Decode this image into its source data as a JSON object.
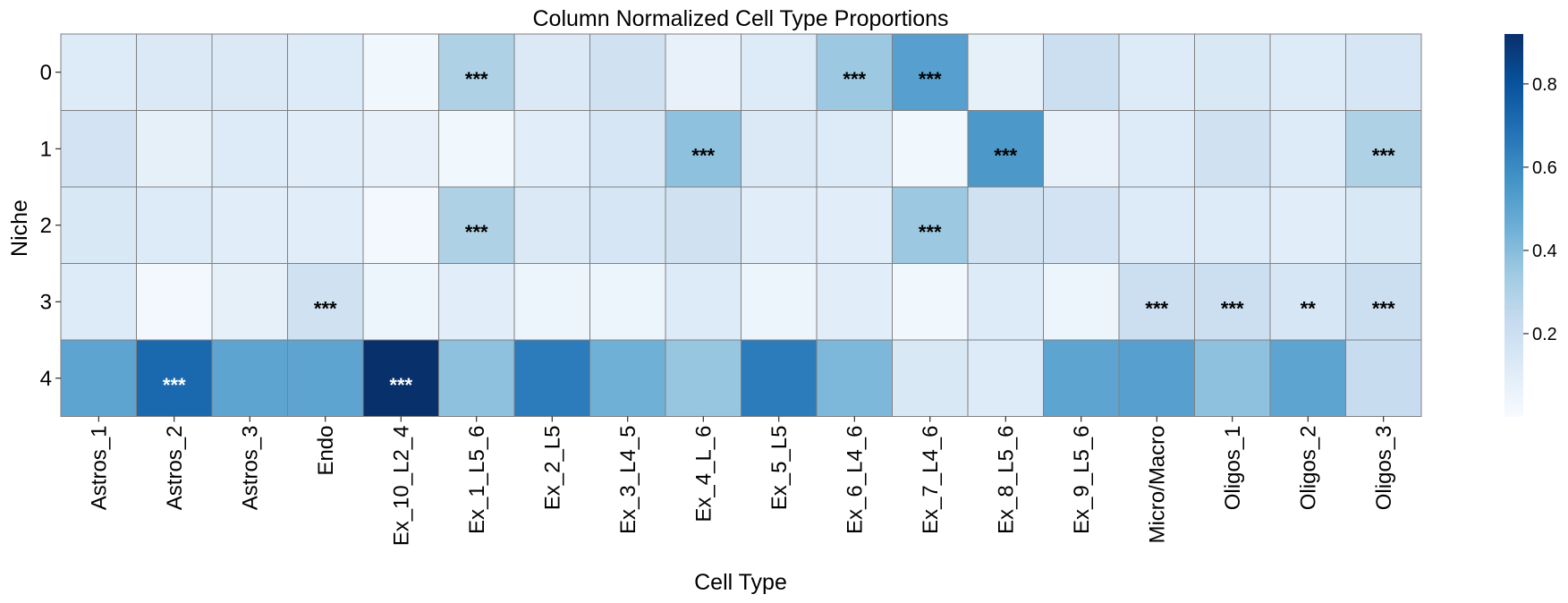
{
  "chart_data": {
    "type": "heatmap",
    "title": "Column Normalized Cell Type Proportions",
    "xlabel": "Cell Type",
    "ylabel": "Niche",
    "columns": [
      "Astros_1",
      "Astros_2",
      "Astros_3",
      "Endo",
      "Ex_10_L2_4",
      "Ex_1_L5_6",
      "Ex_2_L5",
      "Ex_3_L4_5",
      "Ex_4_L_6",
      "Ex_5_L5",
      "Ex_6_L4_6",
      "Ex_7_L4_6",
      "Ex_8_L5_6",
      "Ex_9_L5_6",
      "Micro/Macro",
      "Oligos_1",
      "Oligos_2",
      "Oligos_3"
    ],
    "rows": [
      "0",
      "1",
      "2",
      "3",
      "4"
    ],
    "values": [
      [
        0.12,
        0.13,
        0.13,
        0.12,
        0.03,
        0.3,
        0.13,
        0.18,
        0.07,
        0.12,
        0.35,
        0.52,
        0.08,
        0.2,
        0.12,
        0.14,
        0.12,
        0.15
      ],
      [
        0.17,
        0.08,
        0.12,
        0.1,
        0.07,
        0.03,
        0.1,
        0.15,
        0.38,
        0.13,
        0.12,
        0.03,
        0.55,
        0.07,
        0.12,
        0.18,
        0.12,
        0.3
      ],
      [
        0.14,
        0.12,
        0.1,
        0.1,
        0.02,
        0.3,
        0.13,
        0.15,
        0.18,
        0.1,
        0.1,
        0.35,
        0.18,
        0.17,
        0.12,
        0.12,
        0.1,
        0.14
      ],
      [
        0.12,
        0.02,
        0.08,
        0.18,
        0.05,
        0.1,
        0.05,
        0.05,
        0.12,
        0.05,
        0.1,
        0.03,
        0.12,
        0.05,
        0.2,
        0.2,
        0.15,
        0.2
      ],
      [
        0.5,
        0.72,
        0.5,
        0.5,
        0.92,
        0.38,
        0.65,
        0.45,
        0.36,
        0.65,
        0.42,
        0.14,
        0.12,
        0.5,
        0.52,
        0.38,
        0.5,
        0.22
      ]
    ],
    "annotations": [
      [
        "",
        "",
        "",
        "",
        "",
        "***",
        "",
        "",
        "",
        "",
        "***",
        "***",
        "",
        "",
        "",
        "",
        "",
        ""
      ],
      [
        "",
        "",
        "",
        "",
        "",
        "",
        "",
        "",
        "***",
        "",
        "",
        "",
        "***",
        "",
        "",
        "",
        "",
        "***"
      ],
      [
        "",
        "",
        "",
        "",
        "",
        "***",
        "",
        "",
        "",
        "",
        "",
        "***",
        "",
        "",
        "",
        "",
        "",
        ""
      ],
      [
        "",
        "",
        "",
        "***",
        "",
        "",
        "",
        "",
        "",
        "",
        "",
        "",
        "",
        "",
        "***",
        "***",
        "**",
        "***"
      ],
      [
        "",
        "***",
        "",
        "",
        "***",
        "",
        "",
        "",
        "",
        "",
        "",
        "",
        "",
        "",
        "",
        "",
        "",
        ""
      ]
    ],
    "colormap": "Blues",
    "vmin": 0.0,
    "vmax": 0.92,
    "colorbar_ticks": [
      "0.2",
      "0.4",
      "0.6",
      "0.8"
    ],
    "grid": true
  }
}
